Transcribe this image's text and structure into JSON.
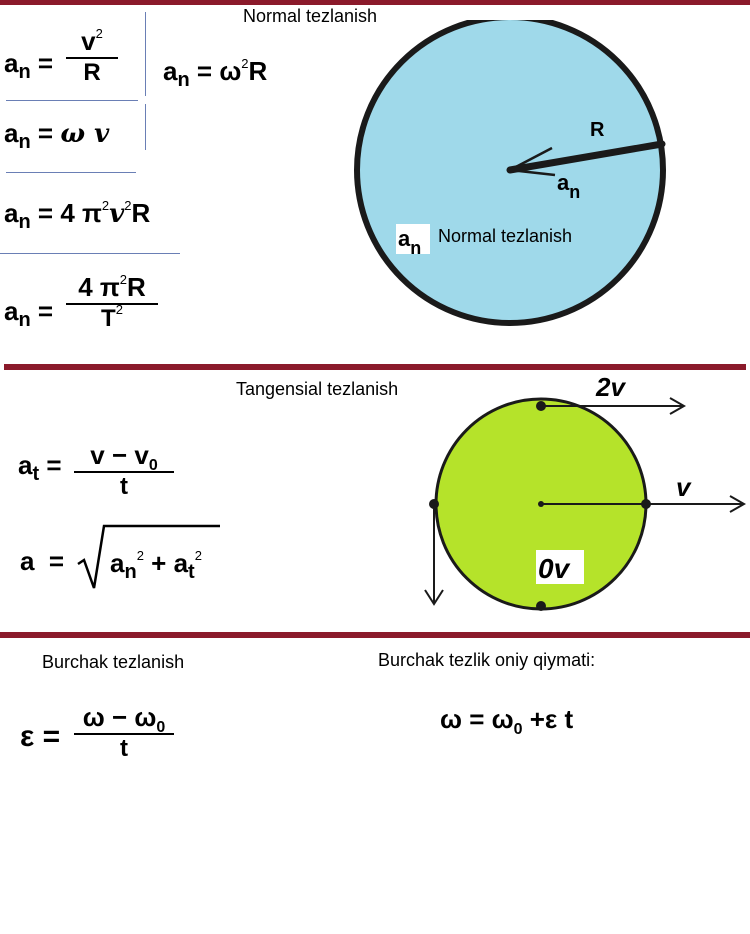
{
  "colors": {
    "divider": "#8b1a2b",
    "circle_normal": "#9fd9ea",
    "circle_tangent": "#b5e32a",
    "stroke": "#1a1a1a"
  },
  "sections": {
    "normal": {
      "title": "Normal tezlanish",
      "formulas": {
        "f1_lhs": "a",
        "f1_lhs_sub": "n",
        "f1_num": "v",
        "f1_num_sup": "2",
        "f1_den": "R",
        "f2_lhs": "a",
        "f2_lhs_sub": "n",
        "f2_rhs": "ω",
        "f2_rhs_sup": "2",
        "f2_rhs2": "R",
        "f3_lhs": "a",
        "f3_lhs_sub": "n",
        "f3_rhs": "ω v",
        "f4_lhs": "a",
        "f4_lhs_sub": "n",
        "f4_rhs_a": "4 π",
        "f4_sup1": "2",
        "f4_rhs_b": "v",
        "f4_sup2": "2",
        "f4_rhs_c": "R",
        "f5_lhs": "a",
        "f5_lhs_sub": "n",
        "f5_num_a": "4 π",
        "f5_num_sup": "2",
        "f5_num_b": "R",
        "f5_den": "T",
        "f5_den_sup": "2"
      },
      "diagram": {
        "radius_label": "R",
        "accel_label": "a",
        "accel_sub": "n",
        "legend_symbol": "a",
        "legend_sub": "n",
        "legend_text": "Normal tezlanish"
      }
    },
    "tangential": {
      "title": "Tangensial tezlanish",
      "formulas": {
        "f1_lhs": "a",
        "f1_lhs_sub": "t",
        "f1_num": "v − v",
        "f1_num_sub": "0",
        "f1_den": "t",
        "f2_lhs": "a",
        "f2_rad_a": "a",
        "f2_rad_a_sub": "n",
        "f2_rad_a_sup": "2",
        "f2_plus": "+",
        "f2_rad_b": "a",
        "f2_rad_b_sub": "t",
        "f2_rad_b_sup": "2"
      },
      "diagram": {
        "top_velocity": "2v",
        "right_velocity": "v",
        "bottom_velocity": "0v"
      }
    },
    "angular": {
      "title": "Burchak tezlanish",
      "formula": {
        "lhs": "ε",
        "num": "ω − ω",
        "num_sub": "0",
        "den": "t"
      },
      "instant_title": "Burchak tezlik oniy qiymati:",
      "instant_formula": {
        "lhs": "ω",
        "eq": "=",
        "rhs_a": "ω",
        "rhs_sub": "0",
        "rhs_b": "+ε t"
      }
    }
  }
}
